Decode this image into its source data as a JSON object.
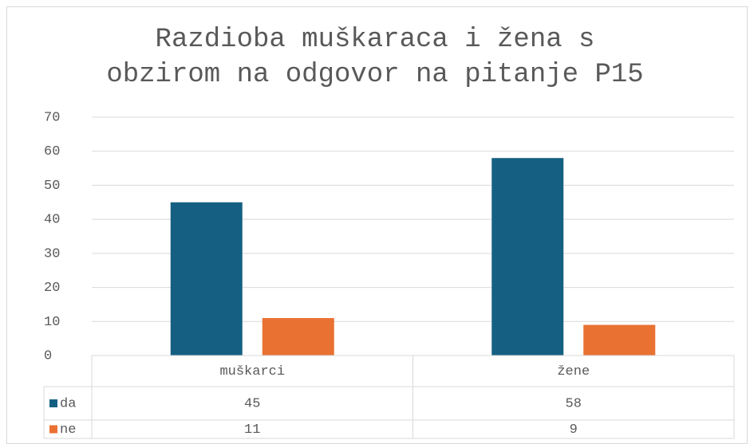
{
  "chart_data": {
    "type": "bar",
    "title": "Razdioba muškaraca i žena s obzirom na odgovor na pitanje P15",
    "categories": [
      "muškarci",
      "žene"
    ],
    "series": [
      {
        "name": "da",
        "color": "#156082",
        "values": [
          45,
          58
        ]
      },
      {
        "name": "ne",
        "color": "#e97132",
        "values": [
          11,
          9
        ]
      }
    ],
    "ylim": [
      0,
      70
    ],
    "yticks": [
      0,
      10,
      20,
      30,
      40,
      50,
      60,
      70
    ],
    "grid": true,
    "data_table": true
  }
}
